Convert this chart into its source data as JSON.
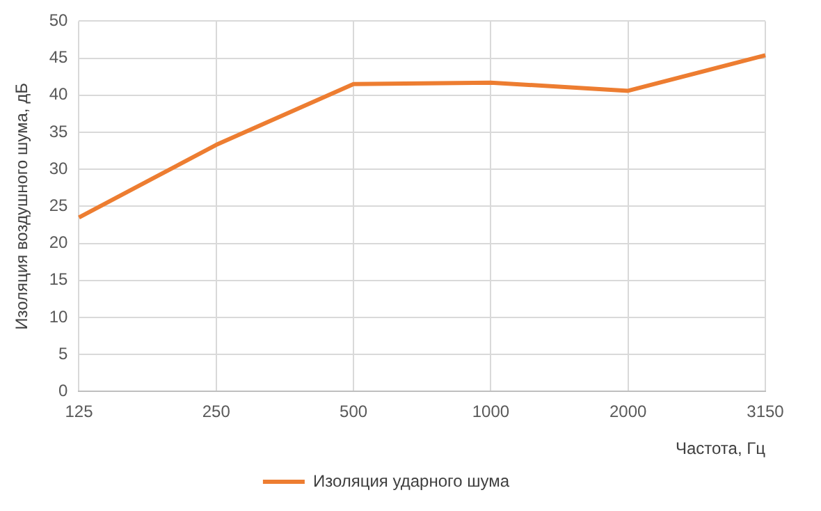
{
  "chart_data": {
    "type": "line",
    "xlabel": "Частота, Гц",
    "ylabel": "Изоляция воздушного шума, дБ",
    "categories": [
      "125",
      "250",
      "500",
      "1000",
      "2000",
      "3150"
    ],
    "series": [
      {
        "name": "Изоляция ударного шума",
        "color": "#ed7d31",
        "values": [
          23.5,
          33.3,
          41.5,
          41.7,
          40.6,
          45.4
        ]
      }
    ],
    "ylim": [
      0,
      50
    ],
    "yticks": [
      0,
      5,
      10,
      15,
      20,
      25,
      30,
      35,
      40,
      45,
      50
    ],
    "grid": true,
    "legend": "bottom",
    "marker": "none",
    "line_style": "solid"
  }
}
